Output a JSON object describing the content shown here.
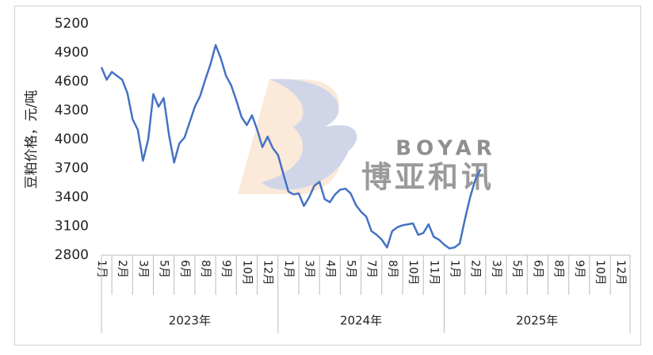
{
  "chart_data": {
    "type": "line",
    "y_label": "豆粕价格，元/吨",
    "watermark": {
      "brand": "BOYAR",
      "name": "博亚和讯"
    },
    "x_groups": [
      {
        "label": "2023年",
        "categories": [
          "1月",
          "2月",
          "3月",
          "5月",
          "6月",
          "8月",
          "9月",
          "10月",
          "12月"
        ]
      },
      {
        "label": "2024年",
        "categories": [
          "1月",
          "3月",
          "4月",
          "5月",
          "7月",
          "8月",
          "10月",
          "11月"
        ]
      },
      {
        "label": "2025年",
        "categories": [
          "1月",
          "2月",
          "3月",
          "5月",
          "6月",
          "8月",
          "9月",
          "10月",
          "12月"
        ]
      }
    ],
    "xlim": [
      0,
      25.45
    ],
    "ylim": [
      2800,
      5200
    ],
    "yticks": [
      2800,
      3100,
      3400,
      3700,
      4000,
      4300,
      4600,
      4900,
      5200
    ],
    "series": [
      {
        "color": "#4472c4",
        "x": [
          0,
          0.25,
          0.5,
          0.75,
          1,
          1.25,
          1.5,
          1.75,
          2,
          2.25,
          2.5,
          2.75,
          3,
          3.25,
          3.5,
          3.75,
          4,
          4.25,
          4.5,
          4.75,
          5,
          5.25,
          5.5,
          5.75,
          6,
          6.25,
          6.5,
          6.75,
          7,
          7.25,
          7.5,
          7.75,
          8,
          8.25,
          8.5,
          8.75,
          9,
          9.25,
          9.5,
          9.75,
          10,
          10.25,
          10.5,
          10.75,
          11,
          11.25,
          11.5,
          11.75,
          12,
          12.25,
          12.5,
          12.75,
          13,
          13.25,
          13.5,
          13.75,
          14,
          14.25,
          14.5,
          14.75,
          15,
          15.25,
          15.5,
          15.75,
          16,
          16.25,
          16.5,
          16.75,
          17,
          17.25,
          17.5,
          17.75,
          18,
          18.25
        ],
        "values": [
          4750,
          4620,
          4700,
          4660,
          4620,
          4480,
          4210,
          4100,
          3780,
          4000,
          4470,
          4340,
          4430,
          4050,
          3760,
          3960,
          4020,
          4180,
          4340,
          4450,
          4620,
          4780,
          4980,
          4840,
          4660,
          4560,
          4400,
          4230,
          4150,
          4250,
          4100,
          3920,
          4030,
          3910,
          3840,
          3650,
          3460,
          3430,
          3440,
          3310,
          3400,
          3520,
          3560,
          3380,
          3350,
          3430,
          3480,
          3490,
          3440,
          3320,
          3250,
          3200,
          3050,
          3010,
          2960,
          2880,
          3050,
          3090,
          3110,
          3120,
          3130,
          3010,
          3030,
          3120,
          2990,
          2960,
          2910,
          2870,
          2880,
          2920,
          3170,
          3400,
          3580,
          3690
        ]
      }
    ]
  }
}
